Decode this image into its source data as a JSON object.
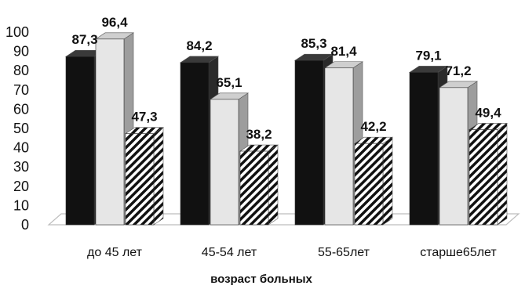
{
  "chart_data": {
    "type": "bar",
    "title": "",
    "xlabel": "возраст больных",
    "ylabel": "",
    "ylim": [
      0,
      100
    ],
    "yticks": [
      0,
      10,
      20,
      30,
      40,
      50,
      60,
      70,
      80,
      90,
      100
    ],
    "categories": [
      "до 45 лет",
      "45-54 лет",
      "55-65лет",
      "старше65лет"
    ],
    "series": [
      {
        "values": [
          87.3,
          84.2,
          85.3,
          79.1
        ],
        "color": "#111111"
      },
      {
        "values": [
          96.4,
          65.1,
          81.4,
          71.2
        ],
        "color": "#e6e6e6"
      },
      {
        "values": [
          47.3,
          38.2,
          42.2,
          49.4
        ],
        "color": "#ffffff",
        "pattern": "diagonal-hatch"
      }
    ],
    "value_labels": [
      [
        "87,3",
        "96,4",
        "47,3"
      ],
      [
        "84,2",
        "65,1",
        "38,2"
      ],
      [
        "85,3",
        "81,4",
        "42,2"
      ],
      [
        "79,1",
        "71,2",
        "49,4"
      ]
    ],
    "grid": false,
    "legend": "none",
    "style": "3d"
  }
}
